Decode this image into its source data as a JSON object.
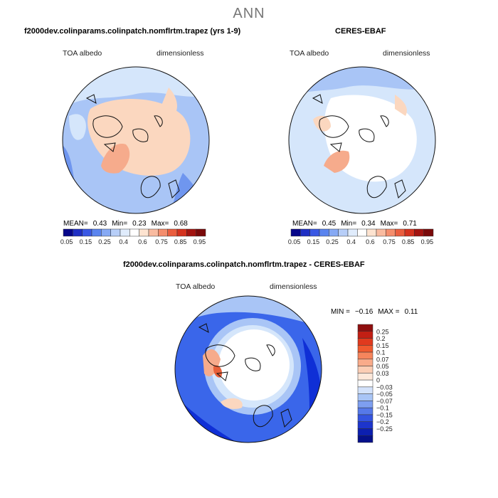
{
  "page_title": "ANN",
  "colors": {
    "deep_blue": "#0f2fd6",
    "blue": "#3a66ea",
    "mid_blue": "#6f96ef",
    "light_blue": "#a9c5f6",
    "pale_blue": "#d5e6fb",
    "white": "#ffffff",
    "peach": "#fbd7bf",
    "salmon": "#f6ab8c",
    "red": "#e8603a"
  },
  "panels": {
    "model": {
      "title": "f2000dev.colinparams.colinpatch.nomflrtm.trapez (yrs 1-9)",
      "variable": "TOA albedo",
      "units": "dimensionless",
      "stats": {
        "mean_label": "MEAN=",
        "mean": "0.43",
        "min_label": "Min=",
        "min": "0.23",
        "max_label": "Max=",
        "max": "0.68"
      }
    },
    "obs": {
      "title": "CERES-EBAF",
      "variable": "TOA albedo",
      "units": "dimensionless",
      "stats": {
        "mean_label": "MEAN=",
        "mean": "0.45",
        "min_label": "Min=",
        "min": "0.34",
        "max_label": "Max=",
        "max": "0.71"
      }
    },
    "diff": {
      "title": "f2000dev.colinparams.colinpatch.nomflrtm.trapez - CERES-EBAF",
      "variable": "TOA albedo",
      "units": "dimensionless",
      "stats": {
        "min_label": "MIN =",
        "min": "−0.16",
        "max_label": "MAX =",
        "max": "0.11"
      }
    }
  },
  "colorbar_horizontal": {
    "labels": [
      "0.05",
      "0.15",
      "0.25",
      "0.4",
      "0.6",
      "0.75",
      "0.85",
      "0.95"
    ],
    "colors": [
      "#06068a",
      "#1f2fc4",
      "#3a58e4",
      "#5a84ef",
      "#86a9f4",
      "#b7cef8",
      "#e0ecfc",
      "#ffffff",
      "#fde3d0",
      "#f9bba0",
      "#f48d6c",
      "#ea5d3e",
      "#d4321e",
      "#a31410",
      "#7a0a0a"
    ]
  },
  "colorbar_vertical": {
    "labels": [
      "0.25",
      "0.2",
      "0.15",
      "0.1",
      "0.07",
      "0.05",
      "0.03",
      "0",
      "−0.03",
      "−0.05",
      "−0.07",
      "−0.1",
      "−0.15",
      "−0.2",
      "−0.25"
    ],
    "colors": [
      "#8f0f0f",
      "#c21f14",
      "#e03a1e",
      "#f05a2f",
      "#f6855c",
      "#f9ab8a",
      "#fbcdb4",
      "#fde8da",
      "#ffffff",
      "#d3e2fb",
      "#a9c5f6",
      "#7e9ff0",
      "#5679e9",
      "#3454e0",
      "#1d35cc",
      "#0c1fb0",
      "#05108a"
    ]
  }
}
